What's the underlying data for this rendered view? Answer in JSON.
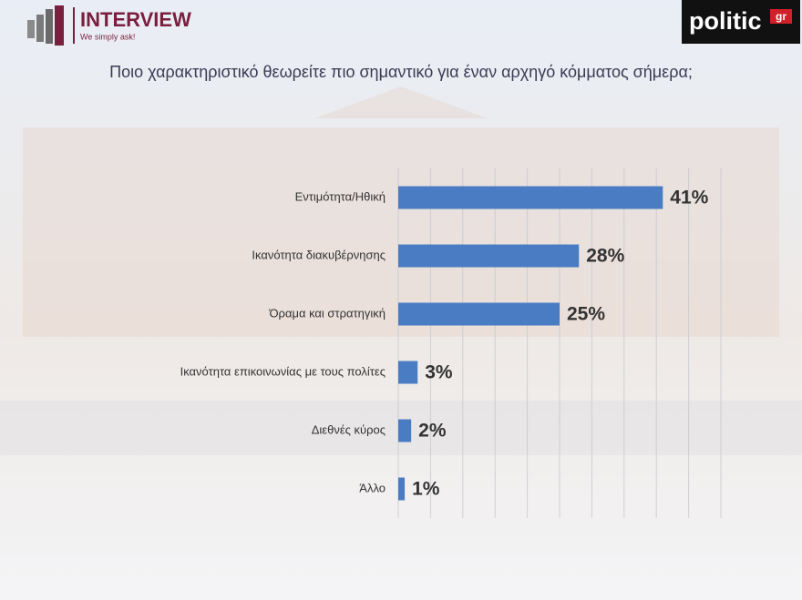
{
  "brand": {
    "name": "INTERVIEW",
    "tagline": "We simply ask!"
  },
  "publisher": {
    "name": "politic",
    "suffix": "gr"
  },
  "chart_data": {
    "type": "hbar",
    "title": "Ποιο χαρακτηριστικό θεωρείτε πιο σημαντικό για έναν αρχηγό κόμματος σήμερα;",
    "categories": [
      "Εντιμότητα/Ηθική",
      "Ικανότητα διακυβέρνησης",
      "Όραμα και στρατηγική",
      "Ικανότητα επικοινωνίας με τους πολίτες",
      "Διεθνές κύρος",
      "Άλλο"
    ],
    "values": [
      41,
      28,
      25,
      3,
      2,
      1
    ],
    "value_labels": [
      "41%",
      "28%",
      "25%",
      "3%",
      "2%",
      "1%"
    ],
    "color": "#4a7cc4",
    "xlim": [
      0,
      50
    ],
    "xticks": [
      0,
      5,
      10,
      15,
      20,
      25,
      30,
      35,
      40,
      45,
      50
    ],
    "grid": true
  }
}
